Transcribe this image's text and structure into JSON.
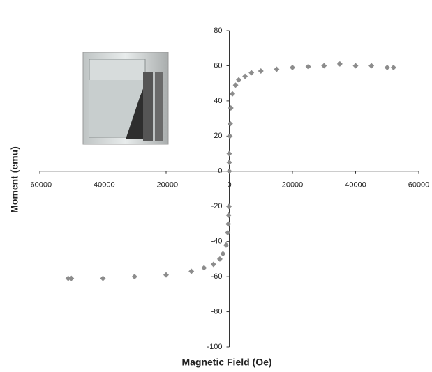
{
  "chart_data": {
    "type": "scatter",
    "x_label": "Magnetic Field (Oe)",
    "y_label": "Moment (emu)",
    "xlim": [
      -60000,
      60000
    ],
    "xticks": [
      -60000,
      -40000,
      -20000,
      0,
      20000,
      40000,
      60000
    ],
    "ylim": [
      -100,
      80
    ],
    "yticks": [
      -100,
      -80,
      -60,
      -40,
      -20,
      0,
      20,
      40,
      60,
      80
    ],
    "color": "#8c8c8c",
    "x": [
      0,
      0,
      0,
      200,
      300,
      500,
      1000,
      2000,
      3000,
      5000,
      7000,
      10000,
      15000,
      20000,
      25000,
      30000,
      35000,
      40000,
      45000,
      50000,
      52000,
      -100,
      -200,
      -300,
      -500,
      -1000,
      -2000,
      -3000,
      -5000,
      -8000,
      -12000,
      -20000,
      -30000,
      -40000,
      -50000,
      -51000
    ],
    "values": [
      0,
      5,
      10,
      20,
      27,
      36,
      44,
      49,
      52,
      54,
      56,
      57,
      58,
      59,
      59.5,
      60,
      61,
      60,
      60,
      59,
      59,
      -20,
      -25,
      -30,
      -35,
      -42,
      -47,
      -50,
      -53,
      -55,
      -57,
      -59,
      -60,
      -61,
      -61,
      -61
    ]
  }
}
